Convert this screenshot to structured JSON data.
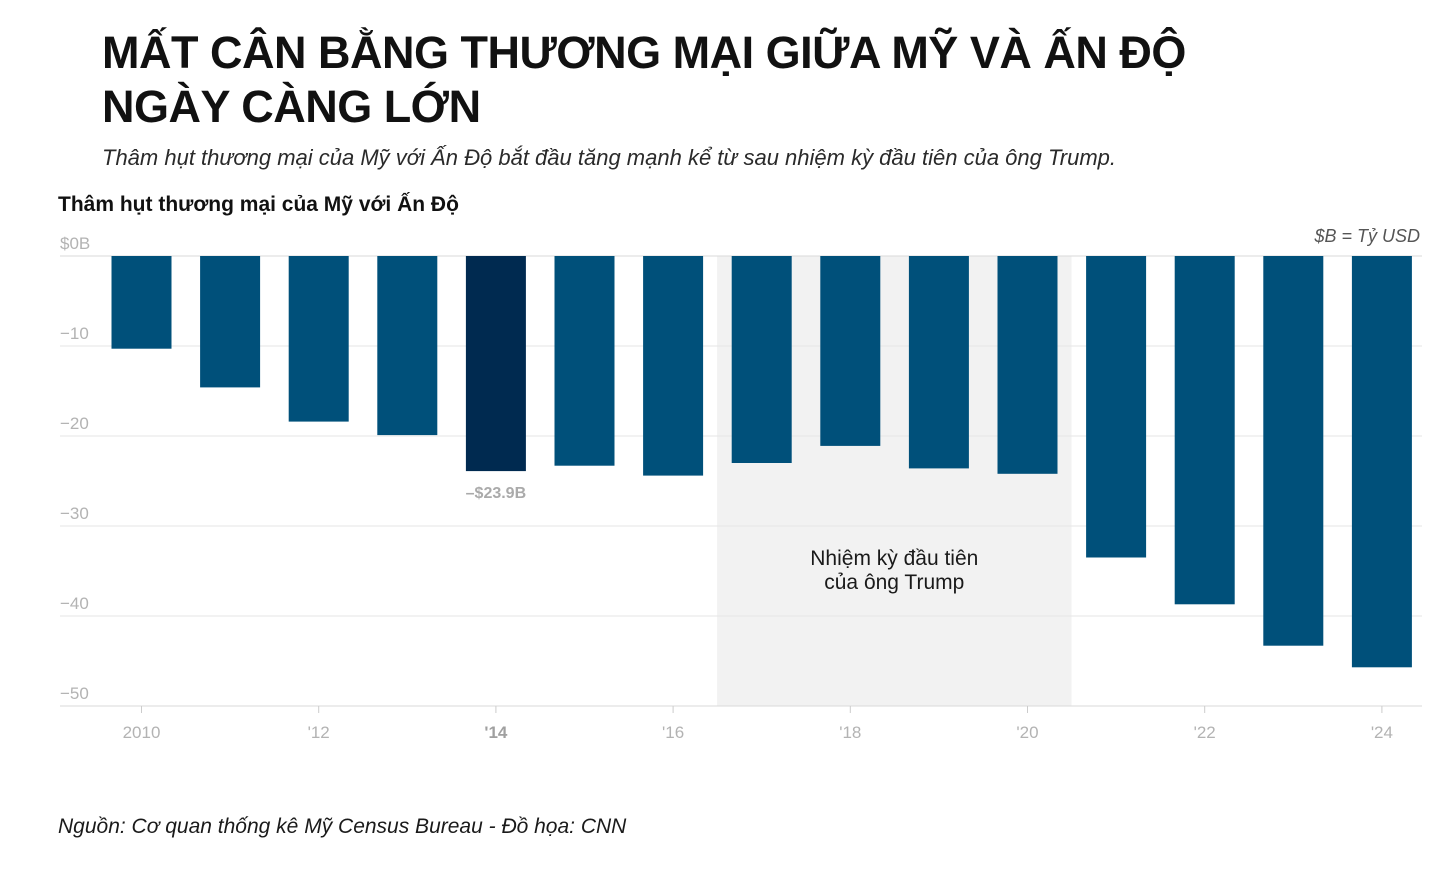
{
  "headline": {
    "line1": "MẤT CÂN BẰNG THƯƠNG MẠI GIỮA MỸ VÀ ẤN ĐỘ",
    "line2": "NGÀY CÀNG LỚN"
  },
  "subtitle": "Thâm hụt thương mại của Mỹ với Ấn Độ bắt đầu tăng mạnh kể từ sau nhiệm kỳ đầu tiên của ông Trump.",
  "source": "Nguồn: Cơ quan thống kê Mỹ Census Bureau - Đồ họa: CNN",
  "colors": {
    "bar": "#00507A",
    "highlight_bar": "#002A50",
    "shade": "#F2F2F2",
    "grid": "#E6E6E6",
    "axis_text": "#B3B3B3"
  },
  "chart_data": {
    "type": "bar",
    "title": "Thâm hụt thương mại của Mỹ với Ấn Độ",
    "unit_note": "$B = Tỷ USD",
    "categories": [
      "2010",
      "2011",
      "2012",
      "2013",
      "2014",
      "2015",
      "2016",
      "2017",
      "2018",
      "2019",
      "2020",
      "2021",
      "2022",
      "2023",
      "2024"
    ],
    "values": [
      -10.3,
      -14.6,
      -18.4,
      -19.9,
      -23.9,
      -23.3,
      -24.4,
      -23.0,
      -21.1,
      -23.6,
      -24.2,
      -33.5,
      -38.7,
      -43.3,
      -45.7
    ],
    "highlight_index": 4,
    "ylim": [
      -50,
      0
    ],
    "yticks": [
      0,
      -10,
      -20,
      -30,
      -40,
      -50
    ],
    "ytick_labels": [
      "$0B",
      "−10",
      "−20",
      "−30",
      "−40",
      "−50"
    ],
    "xticks": [
      {
        "year": 2010,
        "label": "2010",
        "bold": false
      },
      {
        "year": 2012,
        "label": "'12",
        "bold": false
      },
      {
        "year": 2014,
        "label": "'14",
        "bold": true
      },
      {
        "year": 2016,
        "label": "'16",
        "bold": false
      },
      {
        "year": 2018,
        "label": "'18",
        "bold": false
      },
      {
        "year": 2020,
        "label": "'20",
        "bold": false
      },
      {
        "year": 2022,
        "label": "'22",
        "bold": false
      },
      {
        "year": 2024,
        "label": "'24",
        "bold": false
      }
    ],
    "annotation": {
      "year": 2014,
      "label": "–$23.9B"
    },
    "shaded_period": {
      "start_year": 2017,
      "end_year": 2020,
      "label_line1": "Nhiệm kỳ đầu tiên",
      "label_line2": "của ông Trump"
    }
  }
}
